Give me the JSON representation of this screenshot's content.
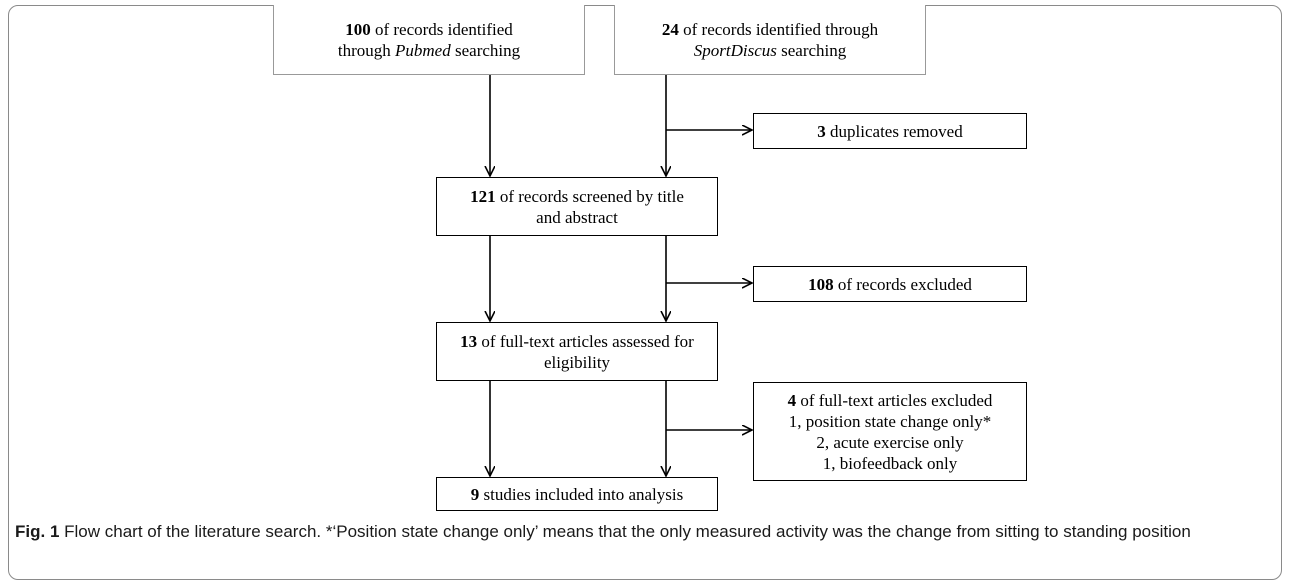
{
  "boxes": {
    "pubmed": {
      "count": "100",
      "line1_rest": " of records identified",
      "line2_pre": "through ",
      "line2_em": "Pubmed",
      "line2_post": " searching"
    },
    "sportdiscus": {
      "count": "24",
      "line1_rest": " of records identified through",
      "line2_em": "SportDiscus",
      "line2_post": " searching"
    },
    "duplicates": {
      "count": "3",
      "rest": " duplicates removed"
    },
    "screened": {
      "count": "121",
      "line1_rest": " of records screened by title",
      "line2": "and abstract"
    },
    "excluded_records": {
      "count": "108",
      "rest": " of records excluded"
    },
    "fulltext": {
      "count": "13",
      "line1_rest": " of full-text articles assessed for",
      "line2": "eligibility"
    },
    "fulltext_excluded": {
      "count": "4",
      "line1_rest": " of full-text articles excluded",
      "line2": "1, position state change only*",
      "line3": "2, acute exercise only",
      "line4": "1, biofeedback only"
    },
    "included": {
      "count": "9",
      "rest": " studies included into analysis"
    }
  },
  "caption": {
    "label": "Fig. 1",
    "text": " Flow chart of the literature search. *‘Position state change only’ means that the only measured activity was the change from sitting to standing position"
  },
  "colors": {
    "line": "#000000",
    "frame": "#8a8a8a"
  }
}
